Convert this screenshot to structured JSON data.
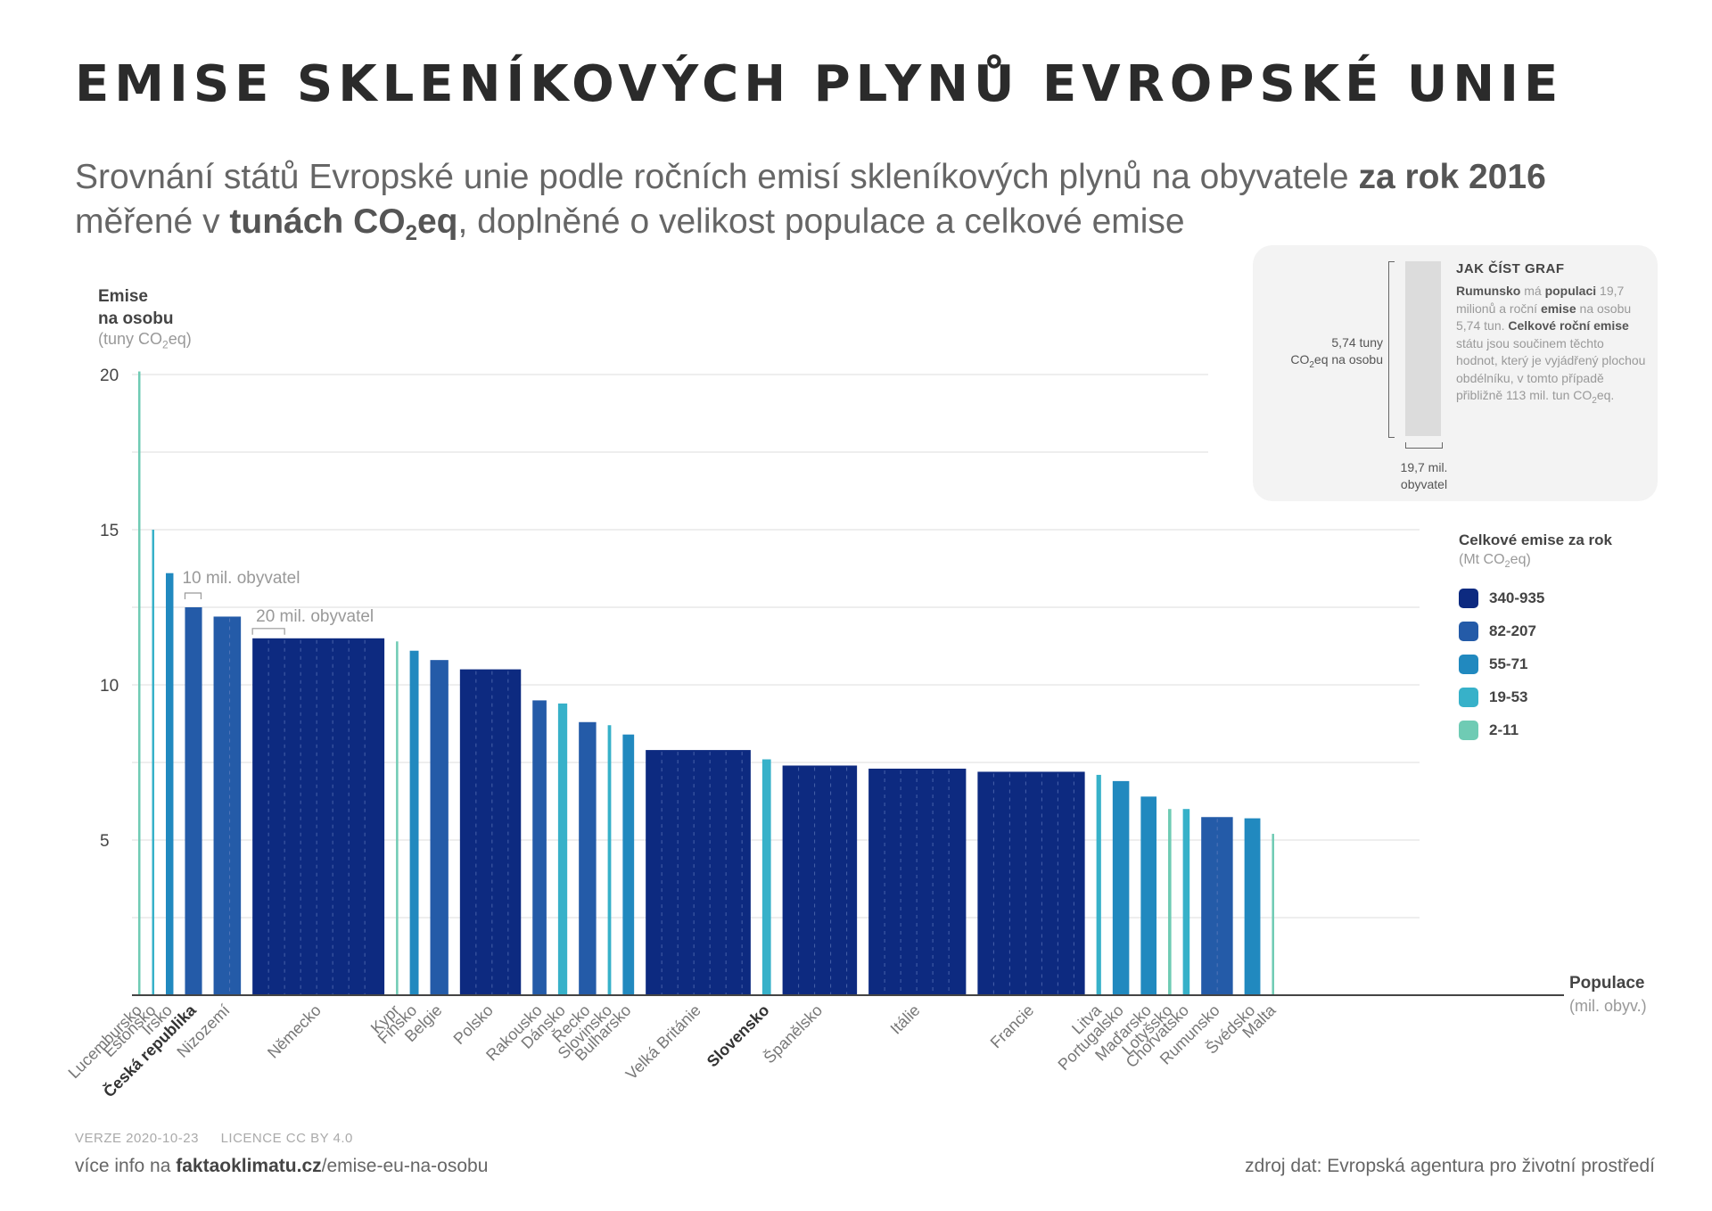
{
  "header": {
    "title": "EMISE SKLENÍKOVÝCH PLYNŮ EVROPSKÉ UNIE",
    "subtitle_line1_pre": "Srovnání států Evropské unie podle ročních emisí skleníkových plynů na obyvatele ",
    "subtitle_line1_bold": "za rok 2016",
    "subtitle_line2_pre": "měřené v ",
    "subtitle_line2_bold": "tunách CO",
    "subtitle_line2_sub": "2",
    "subtitle_line2_bold2": "eq",
    "subtitle_line2_post": ", doplněné o velikost populace a celkové emise"
  },
  "axes": {
    "y_title_line1": "Emise",
    "y_title_line2": "na osobu",
    "y_unit_pre": "(tuny CO",
    "y_unit_sub": "2",
    "y_unit_post": "eq)",
    "x_title": "Populace",
    "x_unit": "(mil. obyv.)"
  },
  "howto": {
    "title": "JAK ČÍST GRAF",
    "t1": "Rumunsko",
    "t2": " má ",
    "t3": "populaci",
    "t4": " 19,7 milionů a roční ",
    "t5": "emise",
    "t6": " na osobu 5,74 tun. ",
    "t7": "Celkové roční emise",
    "t8": " státu jsou součinem těchto hodnot, který je vyjádřený plochou obdélníku, v tomto případě přibližně 113 mil. tun CO",
    "t9": "2",
    "t10": "eq.",
    "ylab1": "5,74 tuny",
    "ylab2_pre": "CO",
    "ylab2_sub": "2",
    "ylab2_post": "eq na osobu",
    "xlab1": "19,7 mil.",
    "xlab2": "obyvatel"
  },
  "legend": {
    "title": "Celkové emise za rok",
    "unit_pre": "(Mt CO",
    "unit_sub": "2",
    "unit_post": "eq)",
    "items": [
      {
        "label": "340-935",
        "color": "#0d2a80"
      },
      {
        "label": "82-207",
        "color": "#245ba8"
      },
      {
        "label": "55-71",
        "color": "#2189bf"
      },
      {
        "label": "19-53",
        "color": "#37b1c9"
      },
      {
        "label": "2-11",
        "color": "#6fcbb4"
      }
    ]
  },
  "annotations": {
    "scale10": "10 mil. obyvatel",
    "scale20": "20 mil. obyvatel"
  },
  "chart_data": {
    "type": "bar",
    "variable_width": true,
    "x_quantity": "Populace (mil. obyv.)",
    "y_quantity": "Emise na osobu (tuny CO2eq)",
    "ylim": [
      0,
      20
    ],
    "yticks": [
      5,
      10,
      15,
      20
    ],
    "grid": true,
    "countries": [
      {
        "name": "Lucembursko",
        "population": 0.6,
        "emissions": 20.1,
        "bin": 4
      },
      {
        "name": "Estonsko",
        "population": 1.3,
        "emissions": 15.0,
        "bin": 3
      },
      {
        "name": "Irsko",
        "population": 4.7,
        "emissions": 13.6,
        "bin": 2
      },
      {
        "name": "Česká republika",
        "population": 10.6,
        "emissions": 12.5,
        "bin": 1,
        "bold": true
      },
      {
        "name": "Nizozemí",
        "population": 17.0,
        "emissions": 12.2,
        "bin": 1
      },
      {
        "name": "Německo",
        "population": 82.2,
        "emissions": 11.5,
        "bin": 0
      },
      {
        "name": "Kypr",
        "population": 0.9,
        "emissions": 11.4,
        "bin": 4
      },
      {
        "name": "Finsko",
        "population": 5.5,
        "emissions": 11.1,
        "bin": 2
      },
      {
        "name": "Belgie",
        "population": 11.3,
        "emissions": 10.8,
        "bin": 1
      },
      {
        "name": "Polsko",
        "population": 38.0,
        "emissions": 10.5,
        "bin": 0
      },
      {
        "name": "Rakousko",
        "population": 8.7,
        "emissions": 9.5,
        "bin": 1
      },
      {
        "name": "Dánsko",
        "population": 5.7,
        "emissions": 9.4,
        "bin": 3
      },
      {
        "name": "Řecko",
        "population": 10.8,
        "emissions": 8.8,
        "bin": 1
      },
      {
        "name": "Slovinsko",
        "population": 2.1,
        "emissions": 8.7,
        "bin": 3
      },
      {
        "name": "Bulharsko",
        "population": 7.1,
        "emissions": 8.4,
        "bin": 2
      },
      {
        "name": "Velká Británie",
        "population": 65.4,
        "emissions": 7.9,
        "bin": 0
      },
      {
        "name": "Slovensko",
        "population": 5.4,
        "emissions": 7.6,
        "bin": 3,
        "bold": true
      },
      {
        "name": "Španělsko",
        "population": 46.4,
        "emissions": 7.4,
        "bin": 0
      },
      {
        "name": "Itálie",
        "population": 60.7,
        "emissions": 7.3,
        "bin": 0
      },
      {
        "name": "Francie",
        "population": 66.8,
        "emissions": 7.2,
        "bin": 0
      },
      {
        "name": "Litva",
        "population": 2.9,
        "emissions": 7.1,
        "bin": 3
      },
      {
        "name": "Portugalsko",
        "population": 10.3,
        "emissions": 6.9,
        "bin": 2
      },
      {
        "name": "Maďarsko",
        "population": 9.8,
        "emissions": 6.4,
        "bin": 2
      },
      {
        "name": "Lotyšsko",
        "population": 2.0,
        "emissions": 6.0,
        "bin": 4
      },
      {
        "name": "Chorvatsko",
        "population": 4.2,
        "emissions": 6.0,
        "bin": 3
      },
      {
        "name": "Rumunsko",
        "population": 19.7,
        "emissions": 5.74,
        "bin": 1
      },
      {
        "name": "Švédsko",
        "population": 9.9,
        "emissions": 5.7,
        "bin": 2
      },
      {
        "name": "Malta",
        "population": 0.4,
        "emissions": 5.2,
        "bin": 4
      }
    ]
  },
  "footer": {
    "version": "VERZE 2020-10-23",
    "license": "LICENCE CC BY 4.0",
    "link_pre": "více info na ",
    "link_bold": "faktaoklimatu.cz",
    "link_post": "/emise-eu-na-osobu",
    "source": "zdroj dat: Evropská agentura pro životní prostředí"
  }
}
